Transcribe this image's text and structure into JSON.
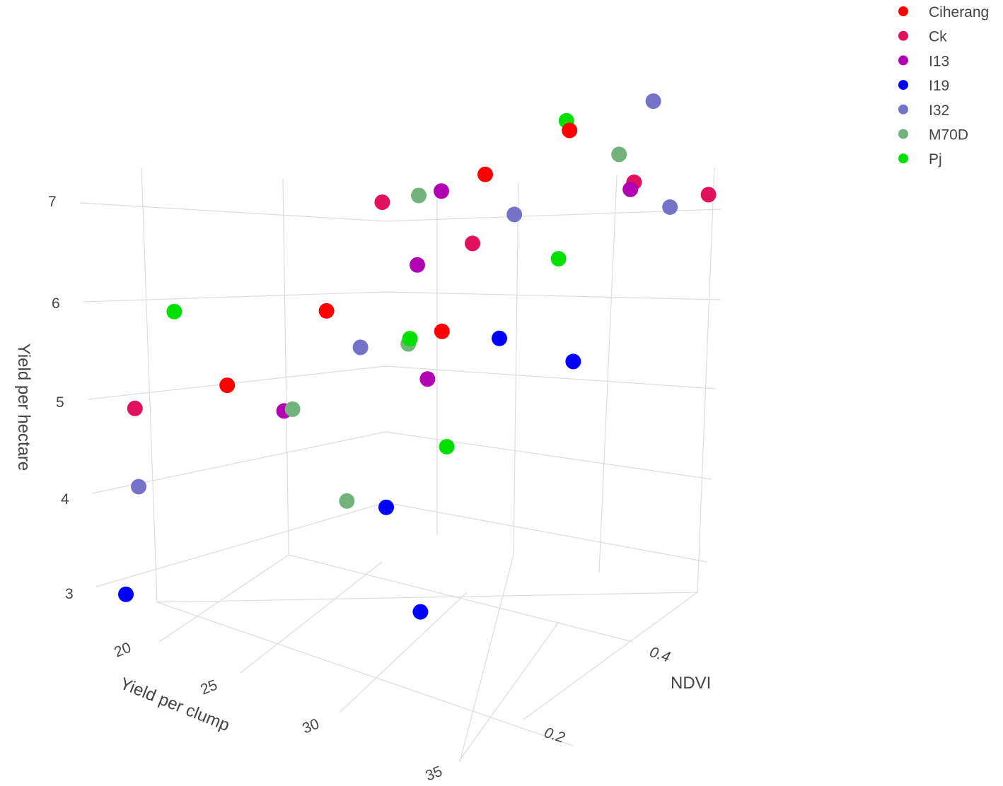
{
  "chart_data": {
    "type": "scatter3d",
    "title": "",
    "xlabel": "NDVI",
    "ylabel": "Yield per clump",
    "zlabel": "Yield per hectare",
    "x_ticks": [
      "0.2",
      "0.4"
    ],
    "y_ticks": [
      "20",
      "25",
      "30",
      "35"
    ],
    "z_ticks": [
      "3",
      "4",
      "5",
      "6",
      "7"
    ],
    "z_range": [
      2.6,
      7.4
    ],
    "legend": "top-right",
    "series": [
      {
        "name": "Ciherang",
        "color": "#ff0000",
        "points": [
          {
            "ndvi": 0.18,
            "clump": 21.3,
            "hectare": 4.62
          },
          {
            "ndvi": 0.27,
            "clump": 23.4,
            "hectare": 5.34
          },
          {
            "ndvi": 0.27,
            "clump": 30.2,
            "hectare": 5.57
          },
          {
            "ndvi": 0.42,
            "clump": 26.5,
            "hectare": 6.64
          },
          {
            "ndvi": 0.52,
            "clump": 27.3,
            "hectare": 6.95
          }
        ]
      },
      {
        "name": "Ck",
        "color": "#e0115f",
        "points": [
          {
            "ndvi": 0.1,
            "clump": 19.2,
            "hectare": 4.4
          },
          {
            "ndvi": 0.38,
            "clump": 22.1,
            "hectare": 6.15
          },
          {
            "ndvi": 0.39,
            "clump": 27.0,
            "hectare": 6.03
          },
          {
            "ndvi": 0.52,
            "clump": 31.1,
            "hectare": 6.67
          },
          {
            "ndvi": 0.57,
            "clump": 33.4,
            "hectare": 6.6
          }
        ]
      },
      {
        "name": "I13",
        "color": "#b000b0",
        "points": [
          {
            "ndvi": 0.21,
            "clump": 23.4,
            "hectare": 4.44
          },
          {
            "ndvi": 0.36,
            "clump": 25.0,
            "hectare": 5.74
          },
          {
            "ndvi": 0.43,
            "clump": 23.5,
            "hectare": 6.26
          },
          {
            "ndvi": 0.24,
            "clump": 30.6,
            "hectare": 5.17
          },
          {
            "ndvi": 0.51,
            "clump": 31.3,
            "hectare": 6.63
          }
        ]
      },
      {
        "name": "I19",
        "color": "#0000ff",
        "points": [
          {
            "ndvi": 0.02,
            "clump": 22.0,
            "hectare": 2.85
          },
          {
            "ndvi": 0.16,
            "clump": 31.5,
            "hectare": 4.08
          },
          {
            "ndvi": 0.11,
            "clump": 35.6,
            "hectare": 3.38
          },
          {
            "ndvi": 0.32,
            "clump": 31.5,
            "hectare": 5.49
          },
          {
            "ndvi": 0.35,
            "clump": 34.6,
            "hectare": 5.4
          }
        ]
      },
      {
        "name": "I32",
        "color": "#7373c9",
        "points": [
          {
            "ndvi": 0.05,
            "clump": 21.5,
            "hectare": 3.85
          },
          {
            "ndvi": 0.27,
            "clump": 25.4,
            "hectare": 5.1
          },
          {
            "ndvi": 0.43,
            "clump": 27.8,
            "hectare": 6.3
          },
          {
            "ndvi": 0.6,
            "clump": 28.9,
            "hectare": 7.2
          },
          {
            "ndvi": 0.53,
            "clump": 32.8,
            "hectare": 6.51
          }
        ]
      },
      {
        "name": "M70D",
        "color": "#72b27b",
        "points": [
          {
            "ndvi": 0.21,
            "clump": 23.9,
            "hectare": 4.49
          },
          {
            "ndvi": 0.15,
            "clump": 29.6,
            "hectare": 4.04
          },
          {
            "ndvi": 0.28,
            "clump": 27.8,
            "hectare": 5.27
          },
          {
            "ndvi": 0.41,
            "clump": 23.0,
            "hectare": 6.22
          },
          {
            "ndvi": 0.53,
            "clump": 29.8,
            "hectare": 6.85
          }
        ]
      },
      {
        "name": "Pj",
        "color": "#00e000",
        "points": [
          {
            "ndvi": 0.17,
            "clump": 18.6,
            "hectare": 5.21
          },
          {
            "ndvi": 0.28,
            "clump": 27.9,
            "hectare": 5.33
          },
          {
            "ndvi": 0.2,
            "clump": 33.4,
            "hectare": 4.74
          },
          {
            "ndvi": 0.43,
            "clump": 30.4,
            "hectare": 6.02
          },
          {
            "ndvi": 0.53,
            "clump": 26.7,
            "hectare": 6.99
          }
        ]
      }
    ]
  }
}
